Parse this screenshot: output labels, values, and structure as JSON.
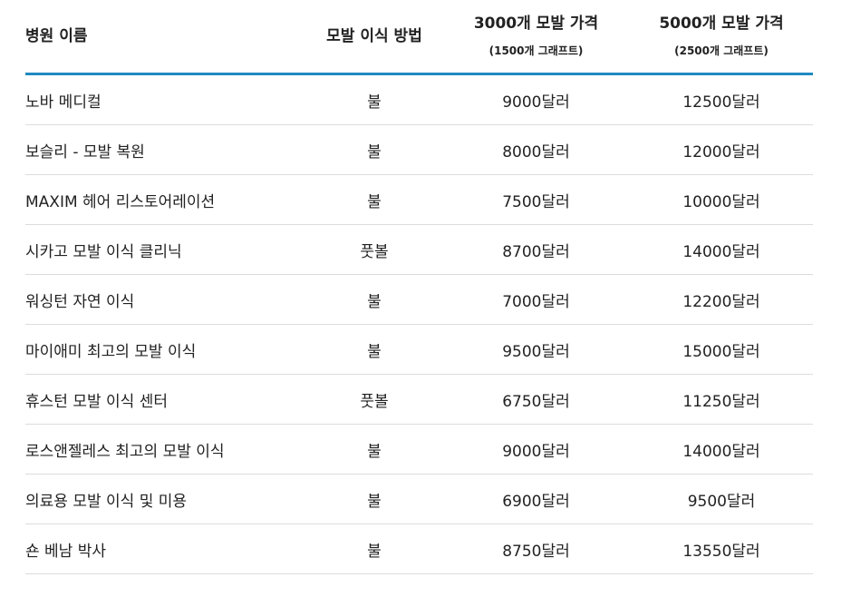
{
  "header": {
    "hospital": "병원 이름",
    "method": "모발 이식 방법",
    "price_3000": "3000개 모발 가격",
    "price_3000_sub": "(1500개 그래프트)",
    "price_5000": "5000개 모발 가격",
    "price_5000_sub": "(2500개 그래프트)"
  },
  "rows": [
    {
      "hospital": "노바 메디컬",
      "method": "불",
      "price_3000": "9000달러",
      "price_5000": "12500달러"
    },
    {
      "hospital": "보슬리 - 모발 복원",
      "method": "불",
      "price_3000": "8000달러",
      "price_5000": "12000달러"
    },
    {
      "hospital": "MAXIM 헤어 리스토어레이션",
      "method": "불",
      "price_3000": "7500달러",
      "price_5000": "10000달러"
    },
    {
      "hospital": "시카고 모발 이식 클리닉",
      "method": "풋볼",
      "price_3000": "8700달러",
      "price_5000": "14000달러"
    },
    {
      "hospital": "워싱턴 자연 이식",
      "method": "불",
      "price_3000": "7000달러",
      "price_5000": "12200달러"
    },
    {
      "hospital": "마이애미 최고의 모발 이식",
      "method": "불",
      "price_3000": "9500달러",
      "price_5000": "15000달러"
    },
    {
      "hospital": "휴스턴 모발 이식 센터",
      "method": "풋볼",
      "price_3000": "6750달러",
      "price_5000": "11250달러"
    },
    {
      "hospital": "로스앤젤레스 최고의 모발 이식",
      "method": "불",
      "price_3000": "9000달러",
      "price_5000": "14000달러"
    },
    {
      "hospital": "의료용 모발 이식 및 미용",
      "method": "불",
      "price_3000": "6900달러",
      "price_5000": "9500달러"
    },
    {
      "hospital": "숀 베남 박사",
      "method": "불",
      "price_3000": "8750달러",
      "price_5000": "13550달러"
    }
  ]
}
